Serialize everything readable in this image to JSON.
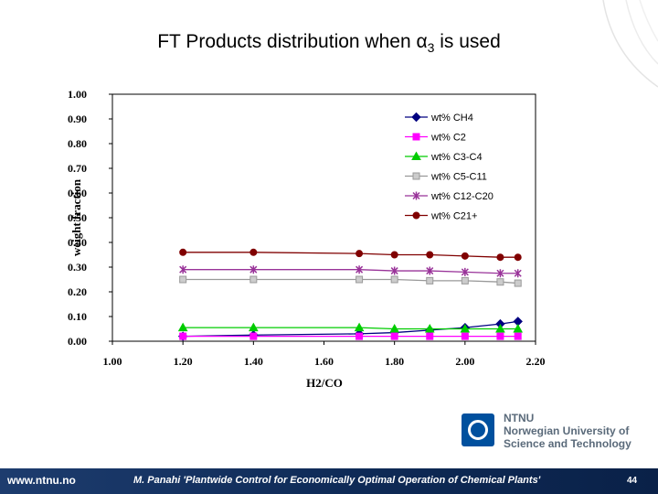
{
  "slide": {
    "title_prefix": "FT Products distribution when α",
    "title_subscript": "3",
    "title_suffix": " is used"
  },
  "branding": {
    "logo_line1": "NTNU",
    "logo_line2": "Norwegian University of",
    "logo_line3": "Science and Technology"
  },
  "footer": {
    "url": "www.ntnu.no",
    "credit": "M. Panahi 'Plantwide Control for Economically Optimal Operation of Chemical Plants'",
    "page": "44"
  },
  "chart_data": {
    "type": "line",
    "title": "",
    "xlabel": "H2/CO",
    "ylabel": "weight fraction",
    "xlim": [
      1.0,
      2.2
    ],
    "ylim": [
      0.0,
      1.0
    ],
    "x_ticks": [
      "1.00",
      "1.20",
      "1.40",
      "1.60",
      "1.80",
      "2.00",
      "2.20"
    ],
    "y_ticks": [
      "0.00",
      "0.10",
      "0.20",
      "0.30",
      "0.40",
      "0.50",
      "0.60",
      "0.70",
      "0.80",
      "0.90",
      "1.00"
    ],
    "legend_position": "top-right",
    "x": [
      1.2,
      1.4,
      1.7,
      1.8,
      1.9,
      2.0,
      2.1,
      2.15
    ],
    "series": [
      {
        "name": "wt% CH4",
        "color": "#000080",
        "marker": "diamond",
        "values": [
          0.02,
          0.025,
          0.03,
          0.035,
          0.045,
          0.055,
          0.07,
          0.08
        ]
      },
      {
        "name": "wt% C2",
        "color": "#ff00ff",
        "marker": "square",
        "values": [
          0.02,
          0.02,
          0.02,
          0.02,
          0.02,
          0.02,
          0.02,
          0.02
        ]
      },
      {
        "name": "wt% C3-C4",
        "color": "#00cc00",
        "marker": "triangle",
        "values": [
          0.055,
          0.055,
          0.055,
          0.05,
          0.05,
          0.05,
          0.05,
          0.05
        ]
      },
      {
        "name": "wt% C5-C11",
        "color": "#999999",
        "marker": "square-open",
        "values": [
          0.25,
          0.25,
          0.25,
          0.25,
          0.245,
          0.245,
          0.24,
          0.235
        ]
      },
      {
        "name": "wt% C12-C20",
        "color": "#993399",
        "marker": "star",
        "values": [
          0.29,
          0.29,
          0.29,
          0.285,
          0.285,
          0.28,
          0.275,
          0.275
        ]
      },
      {
        "name": "wt% C21+",
        "color": "#800000",
        "marker": "circle",
        "values": [
          0.36,
          0.36,
          0.355,
          0.35,
          0.35,
          0.345,
          0.34,
          0.34
        ]
      }
    ]
  }
}
